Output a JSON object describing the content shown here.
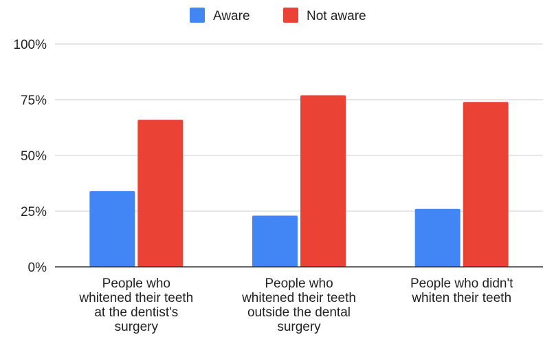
{
  "chart_data": {
    "type": "bar",
    "categories": [
      [
        "People who",
        "whitened their teeth",
        "at the dentist's",
        "surgery"
      ],
      [
        "People who",
        "whitened their teeth",
        "outside the dental",
        "surgery"
      ],
      [
        "People who didn't",
        "whiten their teeth"
      ]
    ],
    "series": [
      {
        "name": "Aware",
        "color": "#4285f4",
        "values": [
          34,
          23,
          26
        ]
      },
      {
        "name": "Not aware",
        "color": "#ea4335",
        "values": [
          66,
          77,
          74
        ]
      }
    ],
    "ylim": [
      0,
      100
    ],
    "yticks": [
      "0%",
      "25%",
      "50%",
      "75%",
      "100%"
    ],
    "ytick_values": [
      0,
      25,
      50,
      75,
      100
    ],
    "legend": "top",
    "grid": true
  }
}
